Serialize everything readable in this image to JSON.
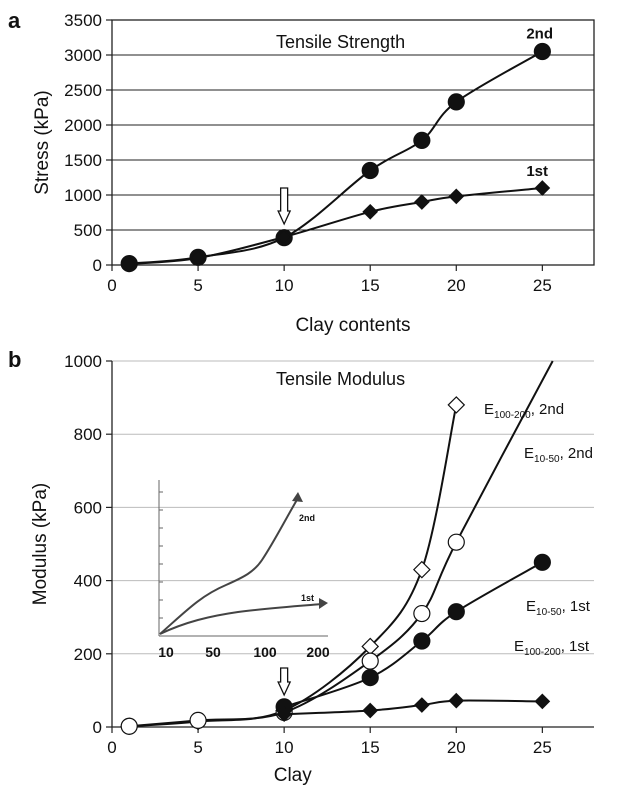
{
  "panels": {
    "a": {
      "letter": "a",
      "title": "Tensile Strength",
      "xlabel": "Clay contents",
      "ylabel": "Stress (kPa)",
      "xticks": [
        0,
        5,
        10,
        15,
        20,
        25
      ],
      "yticks": [
        0,
        500,
        1000,
        1500,
        2000,
        2500,
        3000,
        3500
      ]
    },
    "b": {
      "letter": "b",
      "title": "Tensile Modulus",
      "xlabel": "Clay",
      "ylabel": "Modulus (kPa)",
      "xticks": [
        0,
        5,
        10,
        15,
        20,
        25
      ],
      "yticks": [
        0,
        200,
        400,
        600,
        800,
        1000
      ],
      "inset": {
        "xticks": [
          "10",
          "50",
          "100",
          "200"
        ],
        "label_2nd": "2nd",
        "label_1st": "1st"
      }
    }
  },
  "chart_data": [
    {
      "type": "line",
      "title": "Tensile Strength",
      "xlabel": "Clay contents",
      "ylabel": "Stress (kPa)",
      "xlim": [
        0,
        28
      ],
      "ylim": [
        0,
        3500
      ],
      "grid": "horizontal",
      "series": [
        {
          "name": "2nd",
          "marker": "circle",
          "x": [
            1,
            5,
            10,
            15,
            18,
            20,
            25
          ],
          "y": [
            20,
            110,
            390,
            1350,
            1780,
            2330,
            3050
          ]
        },
        {
          "name": "1st",
          "marker": "diamond",
          "x": [
            1,
            5,
            10,
            15,
            18,
            20,
            25
          ],
          "y": [
            15,
            100,
            400,
            760,
            900,
            980,
            1100
          ]
        }
      ],
      "annotations": [
        {
          "type": "arrow-down",
          "x": 10
        }
      ]
    },
    {
      "type": "line",
      "title": "Tensile Modulus",
      "xlabel": "Clay",
      "ylabel": "Modulus (kPa)",
      "xlim": [
        0,
        28
      ],
      "ylim": [
        0,
        1000
      ],
      "grid": "horizontal",
      "series": [
        {
          "name": "E100-200, 2nd",
          "label_main": "E",
          "label_sub": "100-200",
          "label_tail": ", 2nd",
          "marker": "diamond-open",
          "x": [
            1,
            5,
            10,
            15,
            18,
            20
          ],
          "y": [
            2,
            15,
            45,
            220,
            430,
            880
          ]
        },
        {
          "name": "E10-50, 2nd",
          "label_main": "E",
          "label_sub": "10-50",
          "label_tail": ", 2nd",
          "marker": "circle-open",
          "x": [
            1,
            5,
            10,
            15,
            18,
            20
          ],
          "y": [
            2,
            18,
            40,
            180,
            310,
            505
          ]
        },
        {
          "name": "E10-50, 1st",
          "label_main": "E",
          "label_sub": "10-50",
          "label_tail": ", 1st",
          "marker": "circle",
          "x": [
            10,
            15,
            18,
            20,
            25
          ],
          "y": [
            55,
            135,
            235,
            315,
            450
          ]
        },
        {
          "name": "E100-200, 1st",
          "label_main": "E",
          "label_sub": "100-200",
          "label_tail": ", 1st",
          "marker": "diamond",
          "x": [
            10,
            15,
            18,
            20,
            25
          ],
          "y": [
            35,
            45,
            60,
            72,
            70
          ]
        }
      ],
      "annotations": [
        {
          "type": "arrow-down",
          "x": 10
        }
      ]
    }
  ]
}
